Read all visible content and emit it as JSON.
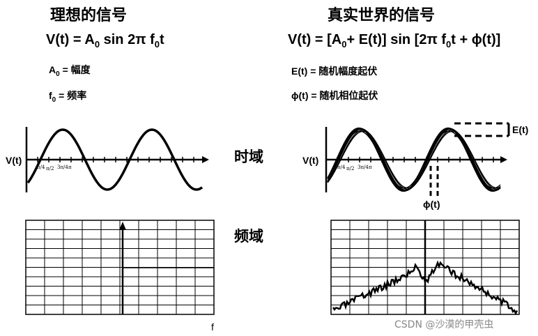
{
  "left": {
    "title": "理想的信号",
    "formula": {
      "pre": "V(t) = A",
      "sub0": "0",
      "mid": " sin 2π f",
      "sub1": "0",
      "post": "t"
    },
    "defs": [
      {
        "sym": "A",
        "sub": "0",
        "rest": " = 幅度"
      },
      {
        "sym": "f",
        "sub": "0",
        "rest": " = 频率"
      }
    ],
    "time_plot": {
      "ylabel": "V(t)"
    },
    "freq_plot": {
      "xlabel": "f"
    }
  },
  "right": {
    "title": "真实世界的信号",
    "formula": {
      "pre": "V(t) = [A",
      "sub0": "0",
      "mid": "+ E(t)] sin [2π f",
      "sub1": "0",
      "post": "t + ϕ(t)]"
    },
    "defs": [
      {
        "text": "E(t) = 随机幅度起伏"
      },
      {
        "text": "ϕ(t) = 随机相位起伏"
      }
    ],
    "time_plot": {
      "ylabel": "V(t)",
      "amp_label": "E(t)",
      "phase_label": "ϕ(t)"
    }
  },
  "domains": {
    "time": "时域",
    "freq": "频域"
  },
  "watermark": "CSDN @沙漠的甲壳虫"
}
